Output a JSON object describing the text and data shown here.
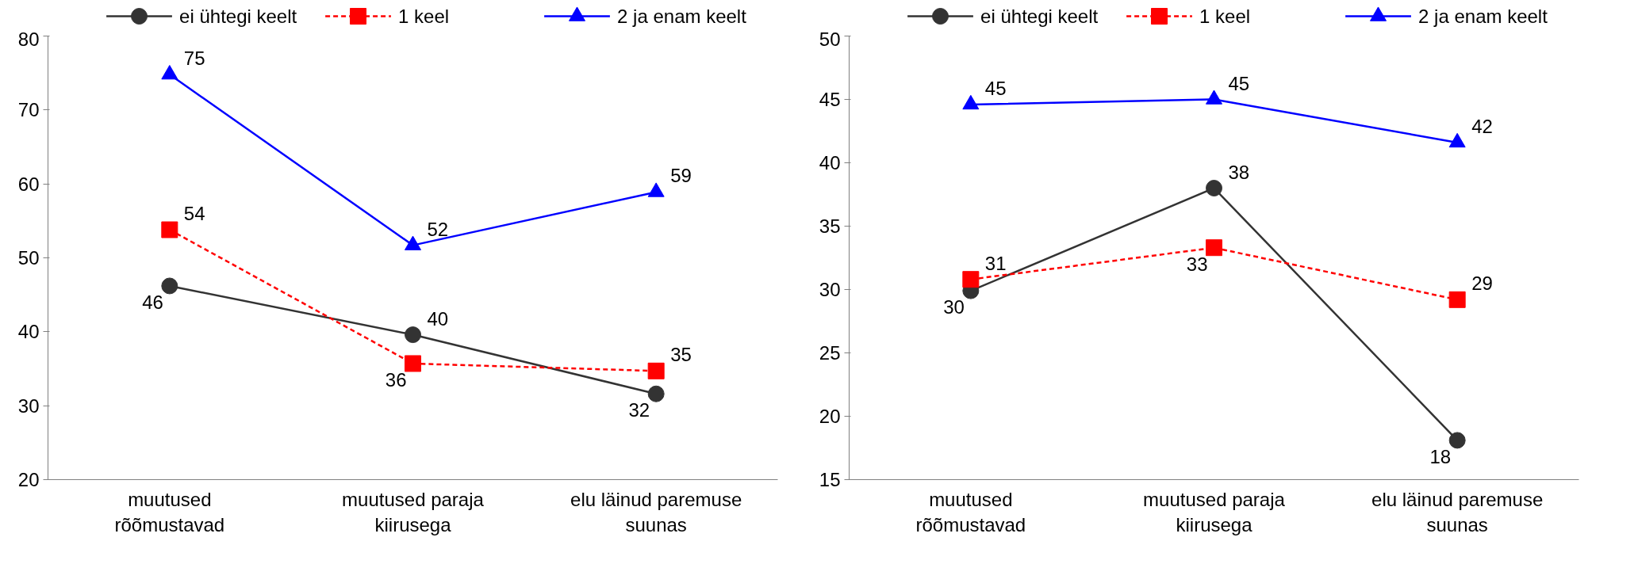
{
  "chart_data": [
    {
      "type": "line",
      "categories": [
        "muutused\nrõõmustavad",
        "muutused paraja\nkiirusega",
        "elu läinud paremuse\nsuunas"
      ],
      "ylim": [
        20,
        80
      ],
      "yticks": [
        20,
        30,
        40,
        50,
        60,
        70,
        80
      ],
      "grid": false,
      "legend": "top",
      "series": [
        {
          "name": "ei ühtegi keelt",
          "color": "#333333",
          "marker": "circle",
          "line_style": "solid",
          "values": [
            46.2,
            39.6,
            31.6
          ],
          "value_labels": [
            "46",
            "40",
            "32"
          ]
        },
        {
          "name": "1 keel",
          "color": "#ff0000",
          "marker": "square",
          "line_style": "dashed",
          "values": [
            53.8,
            35.7,
            34.7
          ],
          "value_labels": [
            "54",
            "36",
            "35"
          ]
        },
        {
          "name": "2 ja enam keelt",
          "color": "#0000ff",
          "marker": "triangle",
          "line_style": "solid",
          "values": [
            74.8,
            51.7,
            58.9
          ],
          "value_labels": [
            "75",
            "52",
            "59"
          ]
        }
      ]
    },
    {
      "type": "line",
      "categories": [
        "muutused\nrõõmustavad",
        "muutused paraja\nkiirusega",
        "elu läinud paremuse\nsuunas"
      ],
      "ylim": [
        15,
        50
      ],
      "yticks": [
        15,
        20,
        25,
        30,
        35,
        40,
        45,
        50
      ],
      "grid": false,
      "legend": "top",
      "series": [
        {
          "name": "ei ühtegi keelt",
          "color": "#333333",
          "marker": "circle",
          "line_style": "solid",
          "values": [
            29.9,
            38.0,
            18.1
          ],
          "value_labels": [
            "30",
            "38",
            "18"
          ]
        },
        {
          "name": "1 keel",
          "color": "#ff0000",
          "marker": "square",
          "line_style": "dashed",
          "values": [
            30.8,
            33.3,
            29.2
          ],
          "value_labels": [
            "31",
            "33",
            "29"
          ]
        },
        {
          "name": "2 ja enam keelt",
          "color": "#0000ff",
          "marker": "triangle",
          "line_style": "solid",
          "values": [
            44.6,
            45.0,
            41.6
          ],
          "value_labels": [
            "45",
            "45",
            "42"
          ]
        }
      ]
    }
  ]
}
